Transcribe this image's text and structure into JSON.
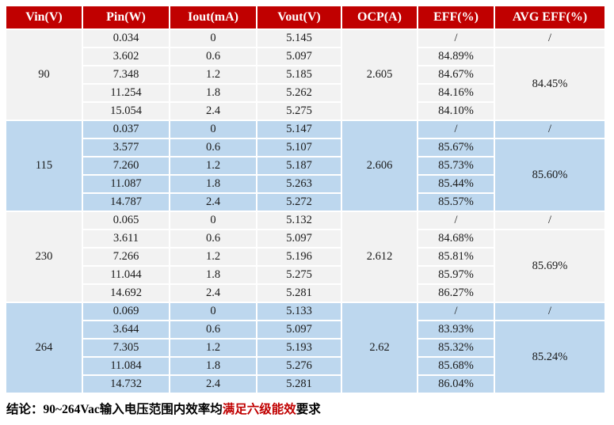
{
  "colors": {
    "header_bg": "#C00000",
    "header_text": "#FFFFFF",
    "group_bg_light": "#F2F2F2",
    "group_bg_blue": "#BDD7EE",
    "highlight_text": "#C00000"
  },
  "table": {
    "headers": [
      "Vin(V)",
      "Pin(W)",
      "Iout(mA)",
      "Vout(V)",
      "OCP(A)",
      "EFF(%)",
      "AVG EFF(%)"
    ],
    "groups": [
      {
        "vin": "90",
        "ocp": "2.605",
        "avg_first": "/",
        "avg": "84.45%",
        "rows": [
          {
            "pin": "0.034",
            "iout": "0",
            "vout": "5.145",
            "eff": "/"
          },
          {
            "pin": "3.602",
            "iout": "0.6",
            "vout": "5.097",
            "eff": "84.89%"
          },
          {
            "pin": "7.348",
            "iout": "1.2",
            "vout": "5.185",
            "eff": "84.67%"
          },
          {
            "pin": "11.254",
            "iout": "1.8",
            "vout": "5.262",
            "eff": "84.16%"
          },
          {
            "pin": "15.054",
            "iout": "2.4",
            "vout": "5.275",
            "eff": "84.10%"
          }
        ]
      },
      {
        "vin": "115",
        "ocp": "2.606",
        "avg_first": "/",
        "avg": "85.60%",
        "rows": [
          {
            "pin": "0.037",
            "iout": "0",
            "vout": "5.147",
            "eff": "/"
          },
          {
            "pin": "3.577",
            "iout": "0.6",
            "vout": "5.107",
            "eff": "85.67%"
          },
          {
            "pin": "7.260",
            "iout": "1.2",
            "vout": "5.187",
            "eff": "85.73%"
          },
          {
            "pin": "11.087",
            "iout": "1.8",
            "vout": "5.263",
            "eff": "85.44%"
          },
          {
            "pin": "14.787",
            "iout": "2.4",
            "vout": "5.272",
            "eff": "85.57%"
          }
        ]
      },
      {
        "vin": "230",
        "ocp": "2.612",
        "avg_first": "/",
        "avg": "85.69%",
        "rows": [
          {
            "pin": "0.065",
            "iout": "0",
            "vout": "5.132",
            "eff": "/"
          },
          {
            "pin": "3.611",
            "iout": "0.6",
            "vout": "5.097",
            "eff": "84.68%"
          },
          {
            "pin": "7.266",
            "iout": "1.2",
            "vout": "5.196",
            "eff": "85.81%"
          },
          {
            "pin": "11.044",
            "iout": "1.8",
            "vout": "5.275",
            "eff": "85.97%"
          },
          {
            "pin": "14.692",
            "iout": "2.4",
            "vout": "5.281",
            "eff": "86.27%"
          }
        ]
      },
      {
        "vin": "264",
        "ocp": "2.62",
        "avg_first": "/",
        "avg": "85.24%",
        "rows": [
          {
            "pin": "0.069",
            "iout": "0",
            "vout": "5.133",
            "eff": "/"
          },
          {
            "pin": "3.644",
            "iout": "0.6",
            "vout": "5.097",
            "eff": "83.93%"
          },
          {
            "pin": "7.305",
            "iout": "1.2",
            "vout": "5.193",
            "eff": "85.32%"
          },
          {
            "pin": "11.084",
            "iout": "1.8",
            "vout": "5.276",
            "eff": "85.68%"
          },
          {
            "pin": "14.732",
            "iout": "2.4",
            "vout": "5.281",
            "eff": "86.04%"
          }
        ]
      }
    ]
  },
  "conclusion": {
    "prefix": "结论：",
    "text_before": "90~264Vac输入电压范围内效率均",
    "highlight": "满足六级能效",
    "text_after": "要求"
  }
}
